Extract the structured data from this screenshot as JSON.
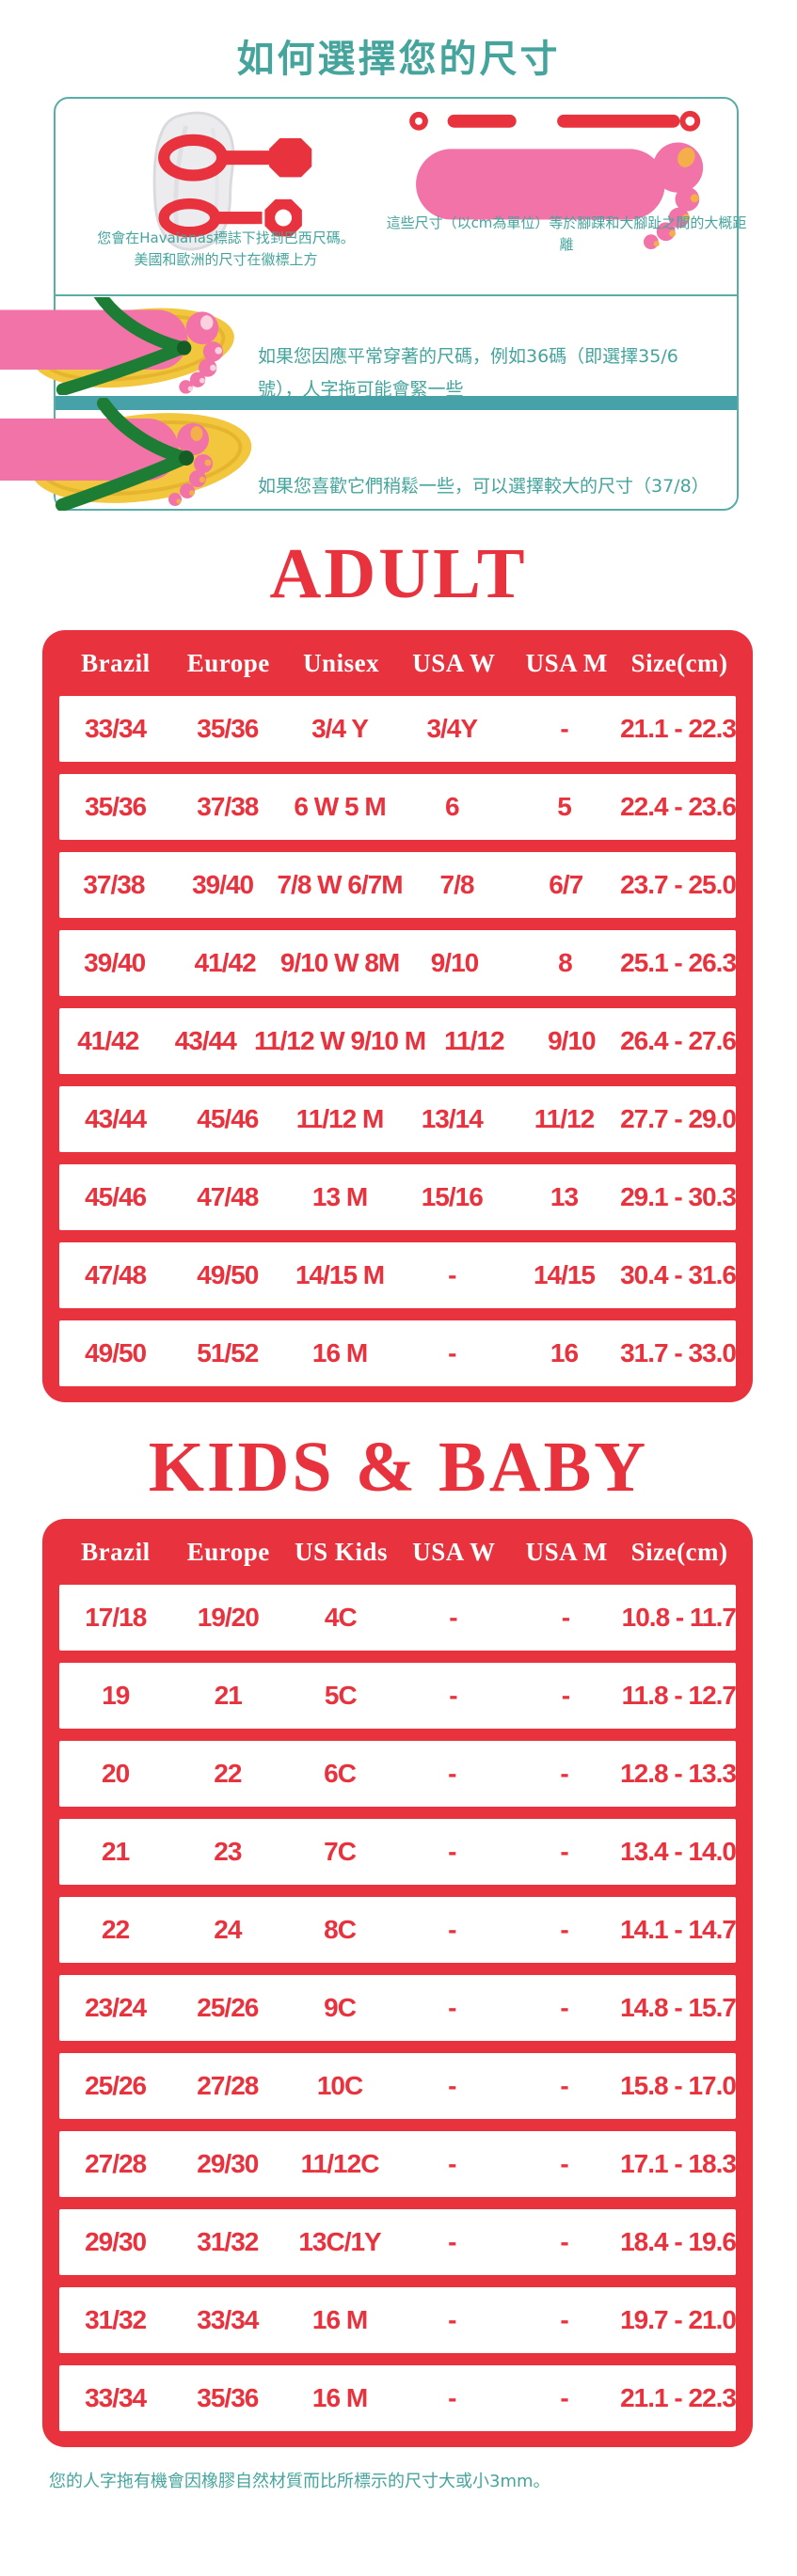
{
  "title": "如何選擇您的尺寸",
  "guide": {
    "sole_caption_line1": "您會在Havaianas標誌下找到巴西尺碼。",
    "sole_caption_line2": "美國和歐洲的尺寸在徽標上方",
    "foot_caption": "這些尺寸（以cm為單位）等於腳踝和大腳趾之間的大概距離",
    "fit_tight_text": "如果您因應平常穿著的尺碼，例如36碼（即選擇35/6號），人字拖可能會緊一些",
    "fit_loose_text": "如果您喜歡它們稍鬆一些，可以選擇較大的尺寸（37/8）"
  },
  "adult_table": {
    "heading": "ADULT",
    "columns": [
      "Brazil",
      "Europe",
      "Unisex",
      "USA W",
      "USA M",
      "Size(cm)"
    ],
    "rows": [
      [
        "33/34",
        "35/36",
        "3/4 Y",
        "3/4Y",
        "-",
        "21.1 - 22.3"
      ],
      [
        "35/36",
        "37/38",
        "6 W 5 M",
        "6",
        "5",
        "22.4 - 23.6"
      ],
      [
        "37/38",
        "39/40",
        "7/8 W 6/7M",
        "7/8",
        "6/7",
        "23.7 - 25.0"
      ],
      [
        "39/40",
        "41/42",
        "9/10 W 8M",
        "9/10",
        "8",
        "25.1 - 26.3"
      ],
      [
        "41/42",
        "43/44",
        "11/12 W 9/10 M",
        "11/12",
        "9/10",
        "26.4 - 27.6"
      ],
      [
        "43/44",
        "45/46",
        "11/12 M",
        "13/14",
        "11/12",
        "27.7 - 29.0"
      ],
      [
        "45/46",
        "47/48",
        "13 M",
        "15/16",
        "13",
        "29.1 - 30.3"
      ],
      [
        "47/48",
        "49/50",
        "14/15 M",
        "-",
        "14/15",
        "30.4 - 31.6"
      ],
      [
        "49/50",
        "51/52",
        "16 M",
        "-",
        "16",
        "31.7 - 33.0"
      ]
    ]
  },
  "kids_table": {
    "heading": "KIDS & BABY",
    "columns": [
      "Brazil",
      "Europe",
      "US Kids",
      "USA W",
      "USA M",
      "Size(cm)"
    ],
    "rows": [
      [
        "17/18",
        "19/20",
        "4C",
        "-",
        "-",
        "10.8 - 11.7"
      ],
      [
        "19",
        "21",
        "5C",
        "-",
        "-",
        "11.8 - 12.7"
      ],
      [
        "20",
        "22",
        "6C",
        "-",
        "-",
        "12.8 - 13.3"
      ],
      [
        "21",
        "23",
        "7C",
        "-",
        "-",
        "13.4 - 14.0"
      ],
      [
        "22",
        "24",
        "8C",
        "-",
        "-",
        "14.1 - 14.7"
      ],
      [
        "23/24",
        "25/26",
        "9C",
        "-",
        "-",
        "14.8 - 15.7"
      ],
      [
        "25/26",
        "27/28",
        "10C",
        "-",
        "-",
        "15.8 - 17.0"
      ],
      [
        "27/28",
        "29/30",
        "11/12C",
        "-",
        "-",
        "17.1 - 18.3"
      ],
      [
        "29/30",
        "31/32",
        "13C/1Y",
        "-",
        "-",
        "18.4 - 19.6"
      ],
      [
        "31/32",
        "33/34",
        "16 M",
        "-",
        "-",
        "19.7 - 21.0"
      ],
      [
        "33/34",
        "35/36",
        "16 M",
        "-",
        "-",
        "21.1 - 22.3"
      ]
    ]
  },
  "footer_note": "您的人字拖有機會因橡膠自然材質而比所標示的尺寸大或小3mm。",
  "colors": {
    "red": "#E8323E",
    "teal_text": "#45A49C",
    "teal_band": "#47A1A9",
    "pink_foot": "#F173A7",
    "yellow_sole": "#F2C63D",
    "green_strap": "#1E7D34"
  }
}
